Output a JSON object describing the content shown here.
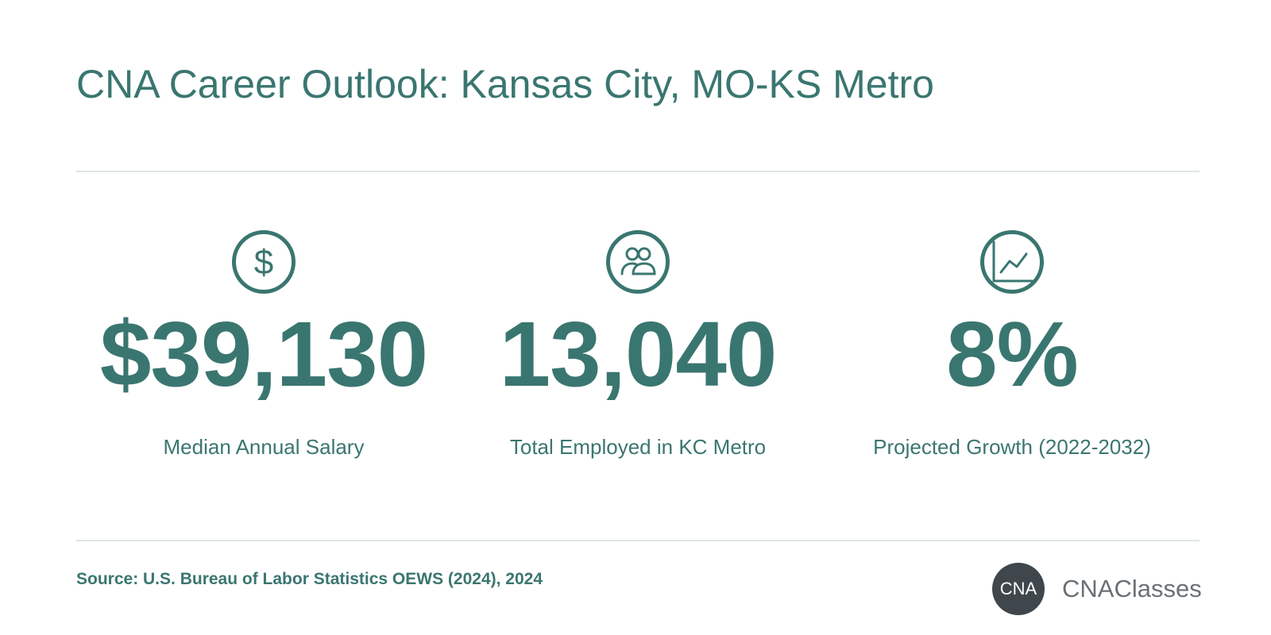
{
  "title": "CNA Career Outlook: Kansas City, MO-KS Metro",
  "stats": [
    {
      "icon": "dollar-icon",
      "value": "$39,130",
      "label": "Median Annual Salary"
    },
    {
      "icon": "people-icon",
      "value": "13,040",
      "label": "Total Employed in KC Metro"
    },
    {
      "icon": "growth-chart-icon",
      "value": "8%",
      "label": "Projected Growth (2022-2032)"
    }
  ],
  "source": "Source: U.S. Bureau of Labor Statistics OEWS (2024), 2024",
  "brand": {
    "badge": "CNA",
    "name": "CNAClasses"
  },
  "colors": {
    "accent": "#3a7670",
    "divider": "#dde6e5",
    "badge": "#3f474c",
    "brand_text": "#6a7075",
    "background": "#ffffff"
  }
}
